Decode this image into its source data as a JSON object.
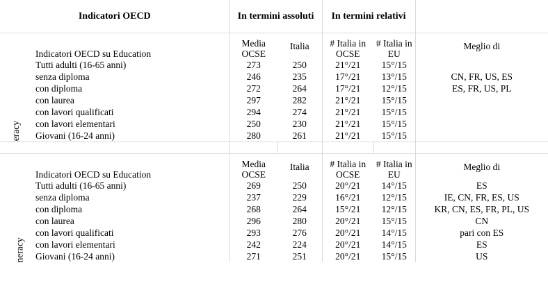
{
  "header": {
    "indicators": "Indicatori OECD",
    "absolute": "In termini assoluti",
    "relative": "In termini relativi"
  },
  "sections": [
    {
      "name": "Literacy",
      "columns": {
        "label": "Indicatori OECD su Education",
        "media": [
          "Media",
          "OCSE"
        ],
        "italia": "Italia",
        "rank_ocse": [
          "# Italia in",
          "OCSE"
        ],
        "rank_eu": [
          "# Italia in",
          "EU"
        ],
        "better": "Meglio di"
      },
      "rows": [
        {
          "label": "Tutti adulti (16-65 anni)",
          "media": "273",
          "italia": "250",
          "rank_ocse": "21°/21",
          "rank_eu": "15°/15",
          "better": ""
        },
        {
          "label": "senza diploma",
          "media": "246",
          "italia": "235",
          "rank_ocse": "17°/21",
          "rank_eu": "13°/15",
          "better": "CN, FR, US, ES"
        },
        {
          "label": "con diploma",
          "media": "272",
          "italia": "264",
          "rank_ocse": "17°/21",
          "rank_eu": "12°/15",
          "better": "ES, FR, US, PL"
        },
        {
          "label": "con laurea",
          "media": "297",
          "italia": "282",
          "rank_ocse": "21°/21",
          "rank_eu": "15°/15",
          "better": ""
        },
        {
          "label": "con lavori qualificati",
          "media": "294",
          "italia": "274",
          "rank_ocse": "21°/21",
          "rank_eu": "15°/15",
          "better": ""
        },
        {
          "label": "con lavori elementari",
          "media": "250",
          "italia": "230",
          "rank_ocse": "21°/21",
          "rank_eu": "15°/15",
          "better": ""
        },
        {
          "label": "Giovani (16-24 anni)",
          "media": "280",
          "italia": "261",
          "rank_ocse": "21°/21",
          "rank_eu": "15°/15",
          "better": ""
        }
      ]
    },
    {
      "name": "Numeracy",
      "columns": {
        "label": "Indicatori OECD su Education",
        "media": [
          "Media",
          "OCSE"
        ],
        "italia": "Italia",
        "rank_ocse": [
          "# Italia in",
          "OCSE"
        ],
        "rank_eu": [
          "# Italia in",
          "EU"
        ],
        "better": "Meglio di"
      },
      "rows": [
        {
          "label": "Tutti adulti (16-65 anni)",
          "media": "269",
          "italia": "250",
          "rank_ocse": "20°/21",
          "rank_eu": "14°/15",
          "better": "ES"
        },
        {
          "label": "senza diploma",
          "media": "237",
          "italia": "229",
          "rank_ocse": "16°/21",
          "rank_eu": "12°/15",
          "better": "IE, CN, FR, ES, US"
        },
        {
          "label": "con diploma",
          "media": "268",
          "italia": "264",
          "rank_ocse": "15°/21",
          "rank_eu": "12°/15",
          "better": "KR, CN, ES, FR, PL, US"
        },
        {
          "label": "con laurea",
          "media": "296",
          "italia": "280",
          "rank_ocse": "20°/21",
          "rank_eu": "15°/15",
          "better": "CN"
        },
        {
          "label": "con lavori qualificati",
          "media": "293",
          "italia": "276",
          "rank_ocse": "20°/21",
          "rank_eu": "14°/15",
          "better": "pari con ES"
        },
        {
          "label": "con lavori elementari",
          "media": "242",
          "italia": "224",
          "rank_ocse": "20°/21",
          "rank_eu": "14°/15",
          "better": "ES"
        },
        {
          "label": "Giovani (16-24 anni)",
          "media": "271",
          "italia": "251",
          "rank_ocse": "20°/21",
          "rank_eu": "15°/15",
          "better": "US"
        }
      ]
    }
  ]
}
